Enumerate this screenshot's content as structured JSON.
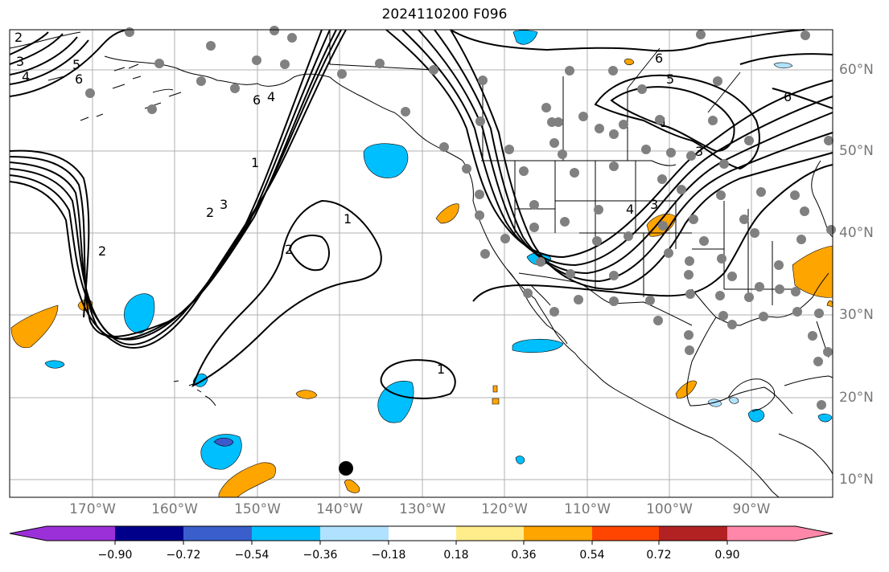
{
  "title": "2024110200 F096",
  "map": {
    "lon_labels": [
      "170°W",
      "160°W",
      "150°W",
      "140°W",
      "130°W",
      "120°W",
      "110°W",
      "100°W",
      "90°W"
    ],
    "lat_labels": [
      "60°N",
      "50°N",
      "40°N",
      "30°N",
      "20°N",
      "10°N"
    ],
    "contour_labels": [
      "2",
      "3",
      "4",
      "5",
      "6",
      "6",
      "4",
      "1",
      "2",
      "3",
      "2",
      "1",
      "2",
      "1",
      "6",
      "5",
      "6",
      "4",
      "3",
      "3",
      "1"
    ],
    "colors": {
      "contour": "#000000",
      "coast": "#000000",
      "grid": "#b0b0b0",
      "station": "#808080",
      "marker": "#000000",
      "negative_fill": "#00bfff",
      "positive_fill": "#ffa500",
      "strong_negative_fill": "#3c5acb"
    }
  },
  "colorbar": {
    "ticks": [
      "−0.90",
      "−0.72",
      "−0.54",
      "−0.36",
      "−0.18",
      "0.18",
      "0.36",
      "0.54",
      "0.72",
      "0.90"
    ],
    "colors": [
      "#9b30d9",
      "#00008b",
      "#3a5fcd",
      "#00bfff",
      "#b0e2ff",
      "#ffffff",
      "#ffec8b",
      "#ffa500",
      "#ff4500",
      "#b22222",
      "#ff88aa"
    ]
  }
}
